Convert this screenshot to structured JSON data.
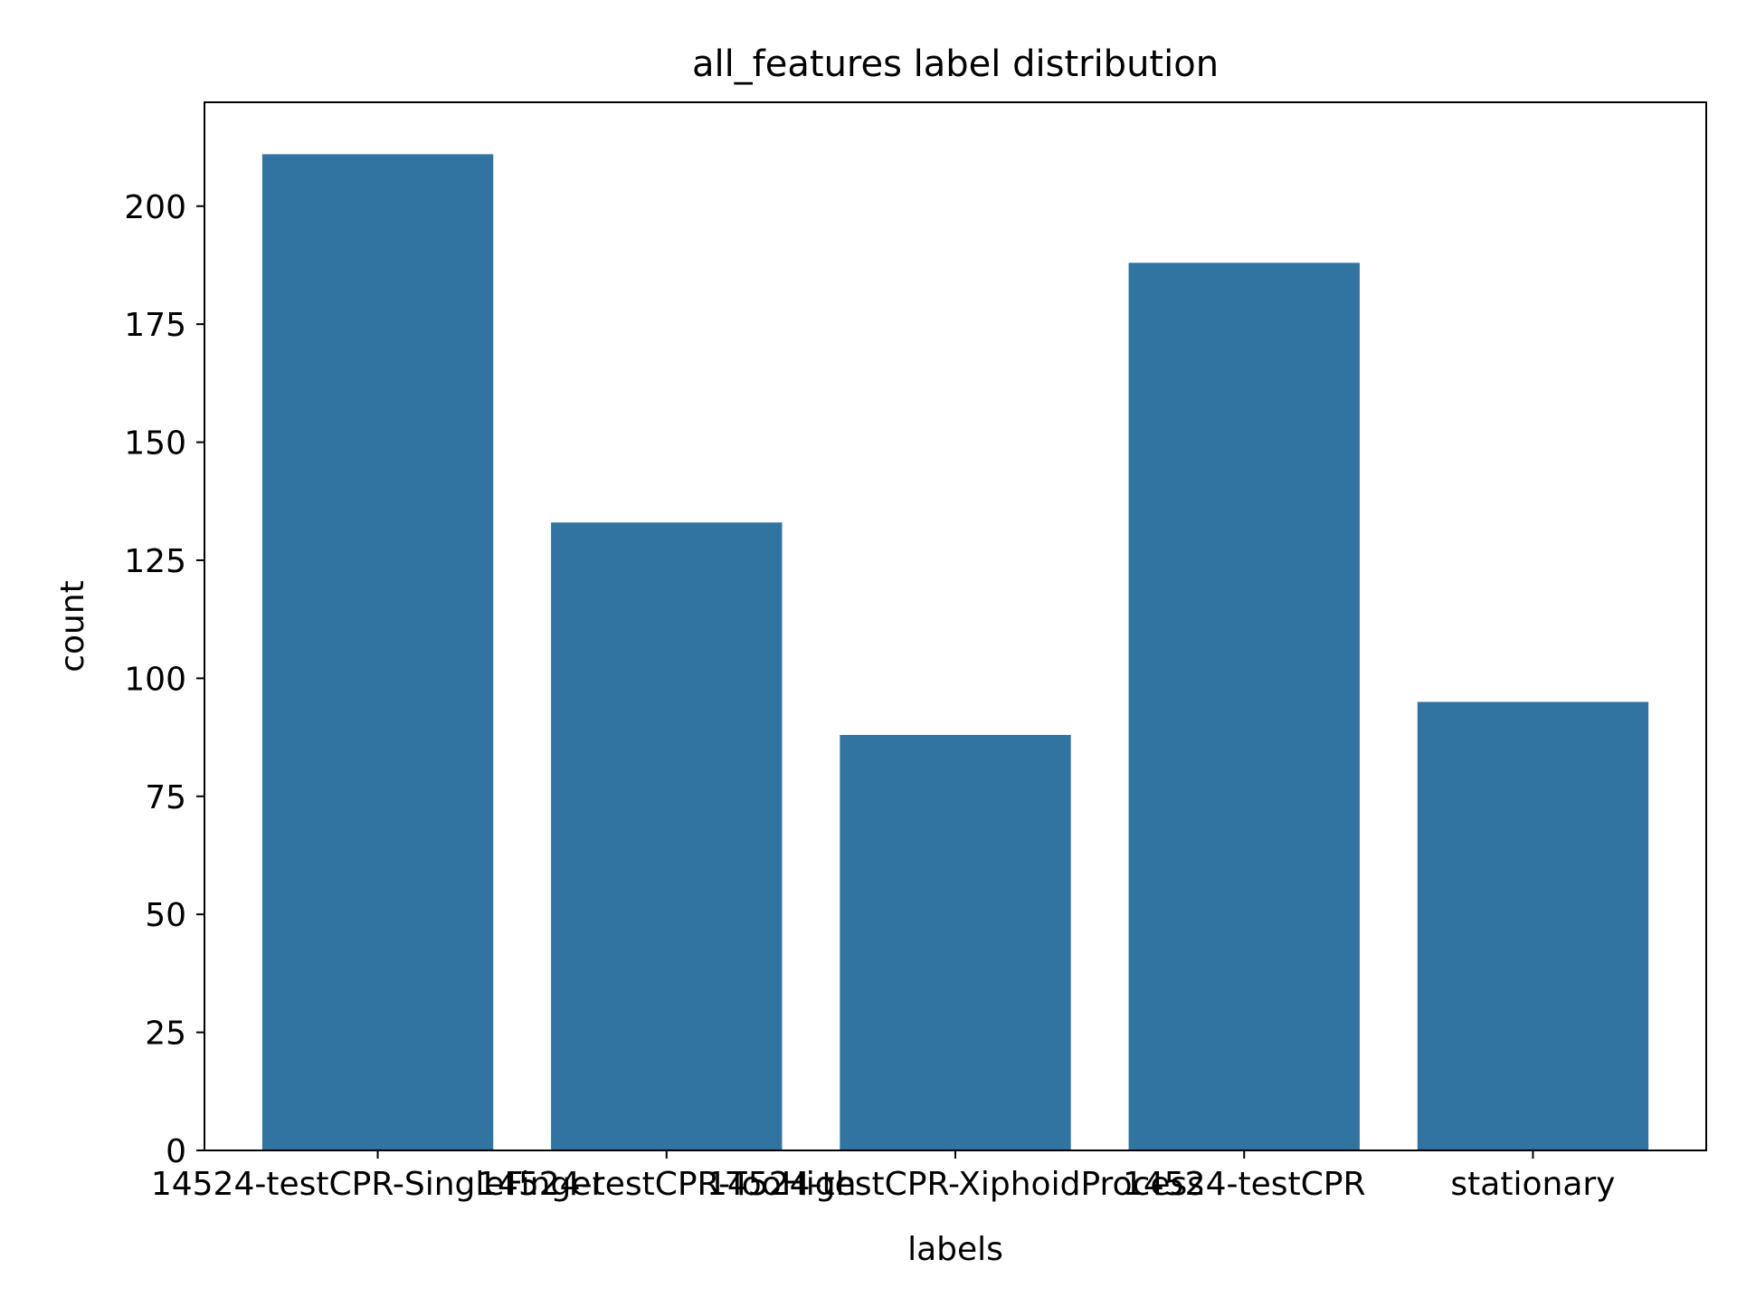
{
  "chart_data": {
    "type": "bar",
    "title": "all_features label distribution",
    "xlabel": "labels",
    "ylabel": "count",
    "categories": [
      "14524-testCPR-SingleFinger",
      "14524-testCPR-TooHigh",
      "14524-testCPR-XiphoidProcess",
      "14524-testCPR",
      "stationary"
    ],
    "values": [
      211,
      133,
      88,
      188,
      95
    ],
    "ylim": [
      0,
      222
    ],
    "yticks": [
      0,
      25,
      50,
      75,
      100,
      125,
      150,
      175,
      200
    ],
    "grid": false,
    "legend": "none",
    "colors": {
      "bar": "#3274a1",
      "axis": "#000000",
      "background": "#ffffff"
    }
  }
}
